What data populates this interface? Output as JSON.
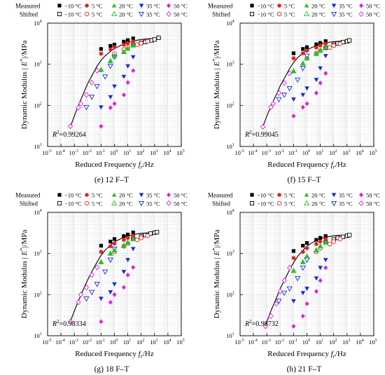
{
  "figure": {
    "legend": {
      "row_labels": [
        "Measured",
        "Shifted"
      ],
      "temperatures": [
        "−10 °C",
        "5 °C",
        "20 °C",
        "35 °C",
        "50 °C"
      ]
    },
    "colors": {
      "t_neg10": "#000000",
      "t_5": "#e8211d",
      "t_20": "#22c32a",
      "t_35": "#1a2bd8",
      "t_50": "#e51fd9",
      "master_curve": "#000000",
      "grid": "#dcdcdc",
      "axis": "#000000"
    },
    "symbols": {
      "measured": [
        "filled-square",
        "filled-circle",
        "filled-triangle-up",
        "filled-triangle-down",
        "filled-diamond"
      ],
      "shifted": [
        "open-square",
        "open-circle",
        "open-triangle-up",
        "open-triangle-down",
        "open-diamond"
      ]
    },
    "xlabel_main": "Reduced Frequency ",
    "xlabel_italic": "f",
    "xlabel_sub": "r",
    "xlabel_unit": "/Hz",
    "ylabel_main": "Dynamic Modulus | ",
    "ylabel_italic": "E",
    "ylabel_sup": "*",
    "ylabel_unit": "|/MPa",
    "x_tick_base": "10",
    "x_tick_exponents": [
      "-5",
      "-4",
      "-3",
      "-2",
      "-1",
      "0",
      "1",
      "2",
      "3",
      "4",
      "5"
    ],
    "y_tick_base": "10",
    "y_tick_exponents": [
      "1",
      "2",
      "3",
      "4"
    ]
  },
  "chart_data": [
    {
      "type": "scatter",
      "caption_label": "(e)",
      "caption_text": "12 F–T",
      "r2_text": "=0.99264",
      "xscale": "log",
      "yscale": "log",
      "xlim": [
        1e-05,
        100000
      ],
      "ylim": [
        10,
        10000
      ],
      "grid": true,
      "legend_position": "top",
      "measured": [
        {
          "name": "−10 °C",
          "x": [
            0.1,
            0.5,
            1,
            5,
            10,
            25
          ],
          "y": [
            2350,
            2800,
            3000,
            3550,
            3850,
            4250
          ]
        },
        {
          "name": "5 °C",
          "x": [
            0.1,
            0.5,
            1,
            5,
            10,
            25
          ],
          "y": [
            1800,
            2300,
            2600,
            3000,
            3250,
            3600
          ]
        },
        {
          "name": "20 °C",
          "x": [
            0.1,
            0.5,
            1,
            5,
            10,
            25
          ],
          "y": [
            730,
            1200,
            1600,
            2000,
            2400,
            2900
          ]
        },
        {
          "name": "35 °C",
          "x": [
            0.1,
            0.5,
            1,
            5,
            10,
            25
          ],
          "y": [
            90,
            160,
            290,
            500,
            900,
            1500
          ]
        },
        {
          "name": "50 °C",
          "x": [
            0.1,
            0.5,
            1,
            5,
            10,
            25
          ],
          "y": [
            31,
            88,
            110,
            180,
            360,
            700
          ]
        }
      ],
      "shifted": [
        {
          "name": "−10 °C",
          "x": [
            25,
            100,
            200,
            600,
            1000,
            2000
          ],
          "y": [
            2900,
            3300,
            3500,
            3800,
            4000,
            4400
          ]
        },
        {
          "name": "5 °C",
          "x": [
            1,
            5,
            10,
            50,
            100,
            300
          ],
          "y": [
            1800,
            2300,
            2600,
            3000,
            3250,
            3600
          ]
        },
        {
          "name": "20 °C",
          "x": [
            0.1,
            0.5,
            1,
            5,
            10,
            25
          ],
          "y": [
            730,
            1200,
            1600,
            2000,
            2400,
            2900
          ]
        },
        {
          "name": "35 °C",
          "x": [
            0.008,
            0.02,
            0.05,
            0.2,
            0.5,
            1
          ],
          "y": [
            90,
            160,
            290,
            500,
            900,
            1500
          ]
        },
        {
          "name": "50 °C",
          "x": [
            0.0005,
            0.002,
            0.003,
            0.008,
            0.02,
            0.05
          ],
          "y": [
            31,
            88,
            110,
            180,
            360,
            700
          ]
        }
      ],
      "master_curve": {
        "x": [
          0.0005,
          0.001,
          0.002,
          0.005,
          0.01,
          0.02,
          0.05,
          0.1,
          0.2,
          0.5,
          1,
          2,
          5,
          10,
          50,
          100,
          1000,
          3000
        ],
        "y": [
          30,
          55,
          100,
          200,
          340,
          520,
          900,
          1250,
          1600,
          2050,
          2400,
          2700,
          3100,
          3400,
          3850,
          4000,
          4300,
          4400
        ]
      }
    },
    {
      "type": "scatter",
      "caption_label": "(f)",
      "caption_text": "15 F–T",
      "r2_text": "=0.99045",
      "xscale": "log",
      "yscale": "log",
      "xlim": [
        1e-05,
        100000
      ],
      "ylim": [
        10,
        10000
      ],
      "grid": true,
      "legend_position": "top",
      "measured": [
        {
          "name": "−10 °C",
          "x": [
            0.1,
            0.5,
            1,
            5,
            10,
            25
          ],
          "y": [
            1850,
            2350,
            2600,
            3050,
            3300,
            3650
          ]
        },
        {
          "name": "5 °C",
          "x": [
            0.1,
            0.5,
            1,
            5,
            10,
            25
          ],
          "y": [
            1400,
            1850,
            2150,
            2550,
            2850,
            3150
          ]
        },
        {
          "name": "20 °C",
          "x": [
            0.1,
            0.5,
            1,
            5,
            10,
            25
          ],
          "y": [
            680,
            1050,
            1400,
            1800,
            2150,
            2650
          ]
        },
        {
          "name": "35 °C",
          "x": [
            0.1,
            0.5,
            1,
            5,
            10,
            25
          ],
          "y": [
            140,
            180,
            260,
            420,
            800,
            1600
          ]
        },
        {
          "name": "50 °C",
          "x": [
            0.1,
            0.5,
            1,
            5,
            10,
            25
          ],
          "y": [
            55,
            90,
            110,
            200,
            350,
            600
          ]
        }
      ],
      "shifted": [
        {
          "name": "−10 °C",
          "x": [
            25,
            100,
            200,
            500,
            1000,
            1500
          ],
          "y": [
            2500,
            3000,
            3200,
            3450,
            3600,
            3800
          ]
        },
        {
          "name": "5 °C",
          "x": [
            1,
            5,
            10,
            50,
            100,
            300
          ],
          "y": [
            1400,
            1850,
            2150,
            2550,
            2850,
            3150
          ]
        },
        {
          "name": "20 °C",
          "x": [
            0.1,
            0.5,
            1,
            5,
            10,
            25
          ],
          "y": [
            680,
            1050,
            1400,
            1800,
            2150,
            2650
          ]
        },
        {
          "name": "35 °C",
          "x": [
            0.008,
            0.02,
            0.05,
            0.2,
            0.5,
            1
          ],
          "y": [
            140,
            180,
            260,
            420,
            800,
            1600
          ]
        },
        {
          "name": "50 °C",
          "x": [
            0.0005,
            0.002,
            0.003,
            0.008,
            0.02,
            0.05
          ],
          "y": [
            30,
            90,
            110,
            200,
            350,
            600
          ]
        }
      ],
      "master_curve": {
        "x": [
          0.0005,
          0.001,
          0.002,
          0.005,
          0.01,
          0.02,
          0.05,
          0.1,
          0.2,
          0.5,
          1,
          2,
          5,
          10,
          50,
          100,
          1000,
          1500
        ],
        "y": [
          30,
          55,
          95,
          180,
          300,
          450,
          780,
          1100,
          1450,
          1850,
          2200,
          2500,
          2850,
          3100,
          3450,
          3550,
          3750,
          3800
        ]
      }
    },
    {
      "type": "scatter",
      "caption_label": "(g)",
      "caption_text": "18 F–T",
      "r2_text": "=0.98334",
      "xscale": "log",
      "yscale": "log",
      "xlim": [
        1e-05,
        100000
      ],
      "ylim": [
        10,
        10000
      ],
      "grid": true,
      "legend_position": "top",
      "measured": [
        {
          "name": "−10 °C",
          "x": [
            0.1,
            0.5,
            1,
            5,
            10,
            25
          ],
          "y": [
            1550,
            1950,
            2250,
            2650,
            2900,
            3250
          ]
        },
        {
          "name": "5 °C",
          "x": [
            0.1,
            0.5,
            1,
            5,
            10,
            25
          ],
          "y": [
            1100,
            1500,
            1750,
            2150,
            2400,
            2700
          ]
        },
        {
          "name": "20 °C",
          "x": [
            0.1,
            0.5,
            1,
            5,
            10,
            25
          ],
          "y": [
            620,
            1000,
            1200,
            1550,
            1850,
            2250
          ]
        },
        {
          "name": "35 °C",
          "x": [
            0.1,
            0.5,
            1,
            5,
            10,
            25
          ],
          "y": [
            80,
            115,
            180,
            360,
            700,
            1300
          ]
        },
        {
          "name": "50 °C",
          "x": [
            0.1,
            0.5,
            1,
            5,
            10,
            25
          ],
          "y": [
            22,
            65,
            100,
            150,
            300,
            460
          ]
        }
      ],
      "shifted": [
        {
          "name": "−10 °C",
          "x": [
            25,
            100,
            200,
            500,
            1000,
            1500
          ],
          "y": [
            2250,
            2600,
            2800,
            3050,
            3200,
            3300
          ]
        },
        {
          "name": "5 °C",
          "x": [
            1,
            5,
            10,
            50,
            100,
            300
          ],
          "y": [
            1100,
            1500,
            1750,
            2150,
            2400,
            2700
          ]
        },
        {
          "name": "20 °C",
          "x": [
            0.1,
            0.5,
            1,
            5,
            10,
            25
          ],
          "y": [
            620,
            1000,
            1200,
            1550,
            1850,
            2250
          ]
        },
        {
          "name": "35 °C",
          "x": [
            0.008,
            0.02,
            0.05,
            0.2,
            0.5,
            1
          ],
          "y": [
            80,
            115,
            180,
            360,
            700,
            1300
          ]
        },
        {
          "name": "50 °C",
          "x": [
            0.0005,
            0.002,
            0.003,
            0.008,
            0.02,
            0.05
          ],
          "y": [
            22,
            65,
            100,
            150,
            300,
            460
          ]
        }
      ],
      "master_curve": {
        "x": [
          0.0005,
          0.001,
          0.002,
          0.005,
          0.01,
          0.02,
          0.05,
          0.1,
          0.2,
          0.5,
          1,
          2,
          5,
          10,
          50,
          100,
          1000,
          1500
        ],
        "y": [
          22,
          40,
          70,
          140,
          230,
          360,
          620,
          900,
          1200,
          1600,
          1900,
          2150,
          2500,
          2700,
          3000,
          3100,
          3250,
          3300
        ]
      }
    },
    {
      "type": "scatter",
      "caption_label": "(h)",
      "caption_text": "21 F–T",
      "r2_text": "=0.98732",
      "xscale": "log",
      "yscale": "log",
      "xlim": [
        1e-05,
        100000
      ],
      "ylim": [
        10,
        10000
      ],
      "grid": true,
      "legend_position": "top",
      "measured": [
        {
          "name": "−10 °C",
          "x": [
            0.1,
            0.5,
            1,
            5,
            10,
            25
          ],
          "y": [
            1150,
            1550,
            1800,
            2150,
            2400,
            2650
          ]
        },
        {
          "name": "5 °C",
          "x": [
            0.1,
            0.5,
            1,
            5,
            10,
            25
          ],
          "y": [
            780,
            1100,
            1350,
            1700,
            1950,
            2250
          ]
        },
        {
          "name": "20 °C",
          "x": [
            0.1,
            0.5,
            1,
            5,
            10,
            25
          ],
          "y": [
            380,
            620,
            850,
            1200,
            1500,
            1850
          ]
        },
        {
          "name": "35 °C",
          "x": [
            0.1,
            0.5,
            1,
            5,
            10,
            25
          ],
          "y": [
            70,
            110,
            140,
            250,
            450,
            700
          ]
        },
        {
          "name": "50 °C",
          "x": [
            0.1,
            0.5,
            1,
            5,
            10,
            25
          ],
          "y": [
            17,
            30,
            60,
            120,
            220,
            450
          ]
        }
      ],
      "shifted": [
        {
          "name": "−10 °C",
          "x": [
            25,
            100,
            200,
            500,
            1000,
            1500
          ],
          "y": [
            1850,
            2200,
            2400,
            2550,
            2700,
            2800
          ]
        },
        {
          "name": "5 °C",
          "x": [
            1,
            5,
            10,
            50,
            100,
            300
          ],
          "y": [
            780,
            1100,
            1350,
            1700,
            1950,
            2250
          ]
        },
        {
          "name": "20 °C",
          "x": [
            0.1,
            0.5,
            1,
            5,
            10,
            25
          ],
          "y": [
            380,
            620,
            850,
            1200,
            1500,
            1850
          ]
        },
        {
          "name": "35 °C",
          "x": [
            0.008,
            0.02,
            0.05,
            0.2,
            0.5,
            1
          ],
          "y": [
            70,
            110,
            140,
            250,
            450,
            700
          ]
        },
        {
          "name": "50 °C",
          "x": [
            0.0008,
            0.002,
            0.005,
            0.01,
            0.02,
            0.05
          ],
          "y": [
            17,
            30,
            60,
            120,
            220,
            450
          ]
        }
      ],
      "master_curve": {
        "x": [
          0.0008,
          0.001,
          0.002,
          0.005,
          0.01,
          0.02,
          0.05,
          0.1,
          0.2,
          0.5,
          1,
          2,
          5,
          10,
          50,
          100,
          1000,
          1500
        ],
        "y": [
          17,
          22,
          40,
          80,
          140,
          220,
          400,
          600,
          850,
          1200,
          1500,
          1750,
          2100,
          2300,
          2600,
          2700,
          2800,
          2850
        ]
      }
    }
  ]
}
